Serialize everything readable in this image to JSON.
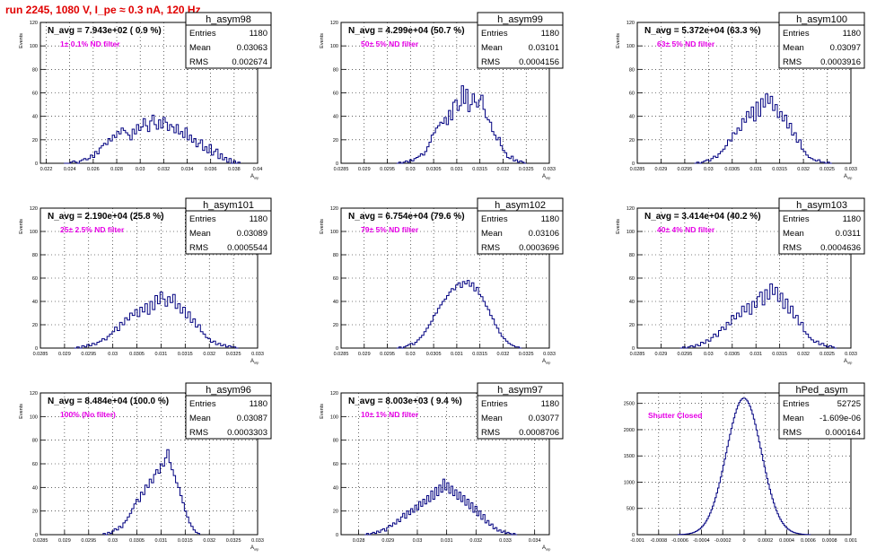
{
  "page": {
    "title": "run 2245,  1080 V, I_pe ≈ 0.3 nA, 120 Hz",
    "colors": {
      "title": "#e00000",
      "histogram": "#000080",
      "annotation": "#e600e6"
    }
  },
  "stats_labels": {
    "entries": "Entries",
    "mean": "Mean",
    "rms": "RMS"
  },
  "chart_data": [
    {
      "type": "histogram",
      "hist_name": "h_asym98",
      "navg": "N_avg = 7.943e+02 ( 0.9 %)",
      "note": "1± 0.1% ND filter",
      "entries": "1180",
      "mean": "0.03063",
      "rms": "0.002674",
      "ylabel": "Events",
      "xlabel": "A_uip",
      "xlim": [
        0.0215,
        0.04
      ],
      "ylim": [
        0,
        120
      ],
      "xticks": [
        "0.022",
        "0.024",
        "0.026",
        "0.028",
        "0.03",
        "0.032",
        "0.034",
        "0.036",
        "0.038",
        "0.04"
      ],
      "xtick_values": [
        0.022,
        0.024,
        0.026,
        0.028,
        0.03,
        0.032,
        0.034,
        0.036,
        0.038,
        0.04
      ],
      "yticks": [
        0,
        20,
        40,
        60,
        80,
        100,
        120
      ],
      "bin_edges_range": [
        0.0235,
        0.0385
      ],
      "counts": [
        0,
        0,
        0,
        1,
        2,
        1,
        0,
        2,
        3,
        4,
        3,
        4,
        7,
        5,
        10,
        8,
        13,
        15,
        17,
        16,
        21,
        19,
        24,
        22,
        27,
        25,
        30,
        28,
        26,
        24,
        20,
        29,
        25,
        33,
        28,
        31,
        38,
        32,
        27,
        36,
        41,
        33,
        29,
        37,
        30,
        39,
        35,
        28,
        33,
        31,
        26,
        33,
        25,
        27,
        22,
        30,
        20,
        24,
        18,
        21,
        14,
        17,
        20,
        11,
        14,
        9,
        16,
        7,
        10,
        12,
        4,
        8,
        3,
        5,
        1,
        4,
        0,
        2,
        0,
        1
      ]
    },
    {
      "type": "histogram",
      "hist_name": "h_asym99",
      "navg": "N_avg = 4.299e+04 (50.7 %)",
      "note": "50± 5% ND filter",
      "entries": "1180",
      "mean": "0.03101",
      "rms": "0.0004156",
      "ylabel": "Events",
      "xlabel": "A_uip",
      "xlim": [
        0.0285,
        0.033
      ],
      "ylim": [
        0,
        120
      ],
      "xticks": [
        "0.0285",
        "0.029",
        "0.0295",
        "0.03",
        "0.0305",
        "0.031",
        "0.0315",
        "0.032",
        "0.0325",
        "0.033"
      ],
      "xtick_values": [
        0.0285,
        0.029,
        0.0295,
        0.03,
        0.0305,
        0.031,
        0.0315,
        0.032,
        0.0325,
        0.033
      ],
      "yticks": [
        0,
        20,
        40,
        60,
        80,
        100,
        120
      ],
      "bin_edges_range": [
        0.0297,
        0.0325
      ],
      "counts": [
        0,
        1,
        0,
        1,
        2,
        1,
        3,
        2,
        4,
        5,
        6,
        8,
        7,
        10,
        14,
        18,
        24,
        26,
        30,
        32,
        35,
        34,
        39,
        33,
        45,
        37,
        52,
        54,
        45,
        49,
        66,
        51,
        63,
        44,
        50,
        59,
        52,
        48,
        54,
        58,
        46,
        39,
        37,
        35,
        27,
        24,
        20,
        22,
        15,
        11,
        9,
        5,
        4,
        6,
        2,
        3,
        1,
        2,
        1,
        0
      ]
    },
    {
      "type": "histogram",
      "hist_name": "h_asym100",
      "navg": "N_avg = 5.372e+04 (63.3 %)",
      "note": "63± 5% ND filter",
      "entries": "1180",
      "mean": "0.03097",
      "rms": "0.0003916",
      "ylabel": "Events",
      "xlabel": "A_uip",
      "xlim": [
        0.0285,
        0.033
      ],
      "ylim": [
        0,
        120
      ],
      "xticks": [
        "0.0285",
        "0.029",
        "0.0295",
        "0.03",
        "0.0305",
        "0.031",
        "0.0315",
        "0.032",
        "0.0325",
        "0.033"
      ],
      "xtick_values": [
        0.0285,
        0.029,
        0.0295,
        0.03,
        0.0305,
        0.031,
        0.0315,
        0.032,
        0.0325,
        0.033
      ],
      "yticks": [
        0,
        20,
        40,
        60,
        80,
        100,
        120
      ],
      "bin_edges_range": [
        0.0297,
        0.0326
      ],
      "counts": [
        0,
        1,
        0,
        1,
        2,
        3,
        2,
        4,
        6,
        5,
        8,
        10,
        12,
        15,
        20,
        19,
        26,
        25,
        30,
        28,
        38,
        35,
        44,
        39,
        48,
        36,
        52,
        40,
        55,
        48,
        59,
        51,
        57,
        45,
        50,
        39,
        44,
        36,
        41,
        30,
        34,
        24,
        26,
        18,
        20,
        12,
        10,
        7,
        5,
        4,
        3,
        2,
        3,
        1,
        1,
        0,
        1,
        0
      ]
    },
    {
      "type": "histogram",
      "hist_name": "h_asym101",
      "navg": "N_avg = 2.190e+04 (25.8 %)",
      "note": "25± 2.5% ND filter",
      "entries": "1180",
      "mean": "0.03089",
      "rms": "0.0005544",
      "ylabel": "Events",
      "xlabel": "A_uip",
      "xlim": [
        0.0285,
        0.033
      ],
      "ylim": [
        0,
        120
      ],
      "xticks": [
        "0.0285",
        "0.029",
        "0.0295",
        "0.03",
        "0.0305",
        "0.031",
        "0.0315",
        "0.032",
        "0.0325",
        "0.033"
      ],
      "xtick_values": [
        0.0285,
        0.029,
        0.0295,
        0.03,
        0.0305,
        0.031,
        0.0315,
        0.032,
        0.0325,
        0.033
      ],
      "yticks": [
        0,
        20,
        40,
        60,
        80,
        100,
        120
      ],
      "bin_edges_range": [
        0.0292,
        0.0326
      ],
      "counts": [
        0,
        1,
        0,
        2,
        1,
        3,
        2,
        4,
        3,
        5,
        6,
        8,
        7,
        10,
        12,
        14,
        18,
        15,
        22,
        20,
        26,
        24,
        30,
        28,
        33,
        27,
        35,
        31,
        38,
        29,
        40,
        33,
        45,
        38,
        48,
        42,
        36,
        44,
        39,
        46,
        34,
        38,
        30,
        35,
        26,
        31,
        22,
        25,
        18,
        20,
        14,
        12,
        9,
        8,
        5,
        6,
        3,
        4,
        2,
        3,
        1,
        2,
        1,
        1,
        0
      ]
    },
    {
      "type": "histogram",
      "hist_name": "h_asym102",
      "navg": "N_avg = 6.754e+04 (79.6 %)",
      "note": "79± 5% ND filter",
      "entries": "1180",
      "mean": "0.03106",
      "rms": "0.0003696",
      "ylabel": "Events",
      "xlabel": "A_uip",
      "xlim": [
        0.0285,
        0.033
      ],
      "ylim": [
        0,
        120
      ],
      "xticks": [
        "0.0285",
        "0.029",
        "0.0295",
        "0.03",
        "0.0305",
        "0.031",
        "0.0315",
        "0.032",
        "0.0325",
        "0.033"
      ],
      "xtick_values": [
        0.0285,
        0.029,
        0.0295,
        0.03,
        0.0305,
        0.031,
        0.0315,
        0.032,
        0.0325,
        0.033
      ],
      "yticks": [
        0,
        20,
        40,
        60,
        80,
        100,
        120
      ],
      "bin_edges_range": [
        0.0297,
        0.0324
      ],
      "counts": [
        0,
        1,
        0,
        1,
        2,
        3,
        4,
        3,
        5,
        7,
        9,
        11,
        14,
        17,
        20,
        23,
        28,
        30,
        34,
        37,
        40,
        42,
        45,
        48,
        51,
        50,
        54,
        56,
        52,
        57,
        55,
        58,
        53,
        56,
        49,
        52,
        46,
        44,
        40,
        36,
        33,
        28,
        25,
        20,
        17,
        13,
        10,
        8,
        6,
        4,
        3,
        2,
        1,
        1,
        0
      ]
    },
    {
      "type": "histogram",
      "hist_name": "h_asym103",
      "navg": "N_avg = 3.414e+04 (40.2 %)",
      "note": "40± 4% ND filter",
      "entries": "1180",
      "mean": "0.0311",
      "rms": "0.0004636",
      "ylabel": "Events",
      "xlabel": "A_uip",
      "xlim": [
        0.0285,
        0.033
      ],
      "ylim": [
        0,
        120
      ],
      "xticks": [
        "0.0285",
        "0.029",
        "0.0295",
        "0.03",
        "0.0305",
        "0.031",
        "0.0315",
        "0.032",
        "0.0325",
        "0.033"
      ],
      "xtick_values": [
        0.0285,
        0.029,
        0.0295,
        0.03,
        0.0305,
        0.031,
        0.0315,
        0.032,
        0.0325,
        0.033
      ],
      "yticks": [
        0,
        20,
        40,
        60,
        80,
        100,
        120
      ],
      "bin_edges_range": [
        0.0294,
        0.0327
      ],
      "counts": [
        0,
        1,
        0,
        1,
        2,
        1,
        3,
        2,
        5,
        4,
        7,
        6,
        9,
        12,
        10,
        15,
        18,
        16,
        22,
        20,
        28,
        25,
        30,
        27,
        36,
        31,
        38,
        29,
        40,
        35,
        44,
        48,
        37,
        50,
        42,
        55,
        46,
        52,
        40,
        47,
        34,
        42,
        30,
        36,
        26,
        28,
        20,
        22,
        14,
        12,
        9,
        7,
        5,
        6,
        3,
        4,
        2,
        1,
        2,
        1,
        0
      ]
    },
    {
      "type": "histogram",
      "hist_name": "h_asym96",
      "navg": "N_avg = 8.484e+04 (100.0 %)",
      "note": "100% (No filter)",
      "entries": "1180",
      "mean": "0.03087",
      "rms": "0.0003303",
      "ylabel": "Events",
      "xlabel": "A_uip",
      "xlim": [
        0.0285,
        0.033
      ],
      "ylim": [
        0,
        120
      ],
      "xticks": [
        "0.0285",
        "0.029",
        "0.0295",
        "0.03",
        "0.0305",
        "0.031",
        "0.0315",
        "0.032",
        "0.0325",
        "0.033"
      ],
      "xtick_values": [
        0.0285,
        0.029,
        0.0295,
        0.03,
        0.0305,
        0.031,
        0.0315,
        0.032,
        0.0325,
        0.033
      ],
      "yticks": [
        0,
        20,
        40,
        60,
        80,
        100,
        120
      ],
      "bin_edges_range": [
        0.0298,
        0.0318
      ],
      "counts": [
        1,
        0,
        2,
        1,
        3,
        5,
        4,
        7,
        6,
        10,
        12,
        15,
        18,
        22,
        26,
        30,
        28,
        36,
        34,
        42,
        40,
        47,
        44,
        51,
        55,
        52,
        60,
        58,
        65,
        72,
        61,
        55,
        50,
        44,
        40,
        33,
        27,
        20,
        15,
        10,
        7,
        4,
        2,
        1
      ]
    },
    {
      "type": "histogram",
      "hist_name": "h_asym97",
      "navg": "N_avg = 8.003e+03 ( 9.4 %)",
      "note": "10± 1% ND filter",
      "entries": "1180",
      "mean": "0.03077",
      "rms": "0.0008706",
      "ylabel": "Events",
      "xlabel": "A_uip",
      "xlim": [
        0.0274,
        0.0345
      ],
      "ylim": [
        0,
        120
      ],
      "xticks": [
        "0.028",
        "0.029",
        "0.03",
        "0.031",
        "0.032",
        "0.033",
        "0.034"
      ],
      "xtick_values": [
        0.028,
        0.029,
        0.03,
        0.031,
        0.032,
        0.033,
        0.034
      ],
      "yticks": [
        0,
        20,
        40,
        60,
        80,
        100,
        120
      ],
      "bin_edges_range": [
        0.0282,
        0.0334
      ],
      "counts": [
        0,
        1,
        0,
        1,
        2,
        1,
        3,
        2,
        4,
        5,
        3,
        6,
        8,
        7,
        10,
        9,
        13,
        11,
        15,
        18,
        14,
        20,
        17,
        22,
        19,
        25,
        21,
        28,
        24,
        30,
        26,
        33,
        28,
        37,
        30,
        40,
        33,
        42,
        36,
        47,
        38,
        44,
        35,
        41,
        33,
        38,
        30,
        36,
        28,
        33,
        25,
        30,
        22,
        27,
        19,
        24,
        16,
        20,
        13,
        17,
        10,
        12,
        8,
        9,
        5,
        6,
        3,
        4,
        2,
        3,
        1,
        2,
        1,
        0,
        1,
        0
      ]
    },
    {
      "type": "histogram",
      "hist_name": "hPed_asym",
      "navg": "",
      "note": "Shutter Closed",
      "entries": "52725",
      "mean": "-1.609e-06",
      "rms": "0.000164",
      "ylabel": "",
      "xlabel": "",
      "xlim": [
        -0.001,
        0.001
      ],
      "ylim": [
        0,
        2700
      ],
      "xticks": [
        "-0.001",
        "-0.0008",
        "-0.0006",
        "-0.0004",
        "-0.0002",
        "0",
        "0.0002",
        "0.0004",
        "0.0006",
        "0.0008",
        "0.001"
      ],
      "xtick_values": [
        -0.001,
        -0.0008,
        -0.0006,
        -0.0004,
        -0.0002,
        0,
        0.0002,
        0.0004,
        0.0006,
        0.0008,
        0.001
      ],
      "yticks": [
        0,
        500,
        1000,
        1500,
        2000,
        2500
      ],
      "gauss": {
        "mu": -1.6e-06,
        "sigma": 0.000164,
        "peak": 2600,
        "range": [
          -0.00062,
          0.00062
        ],
        "bins": 100
      }
    }
  ]
}
